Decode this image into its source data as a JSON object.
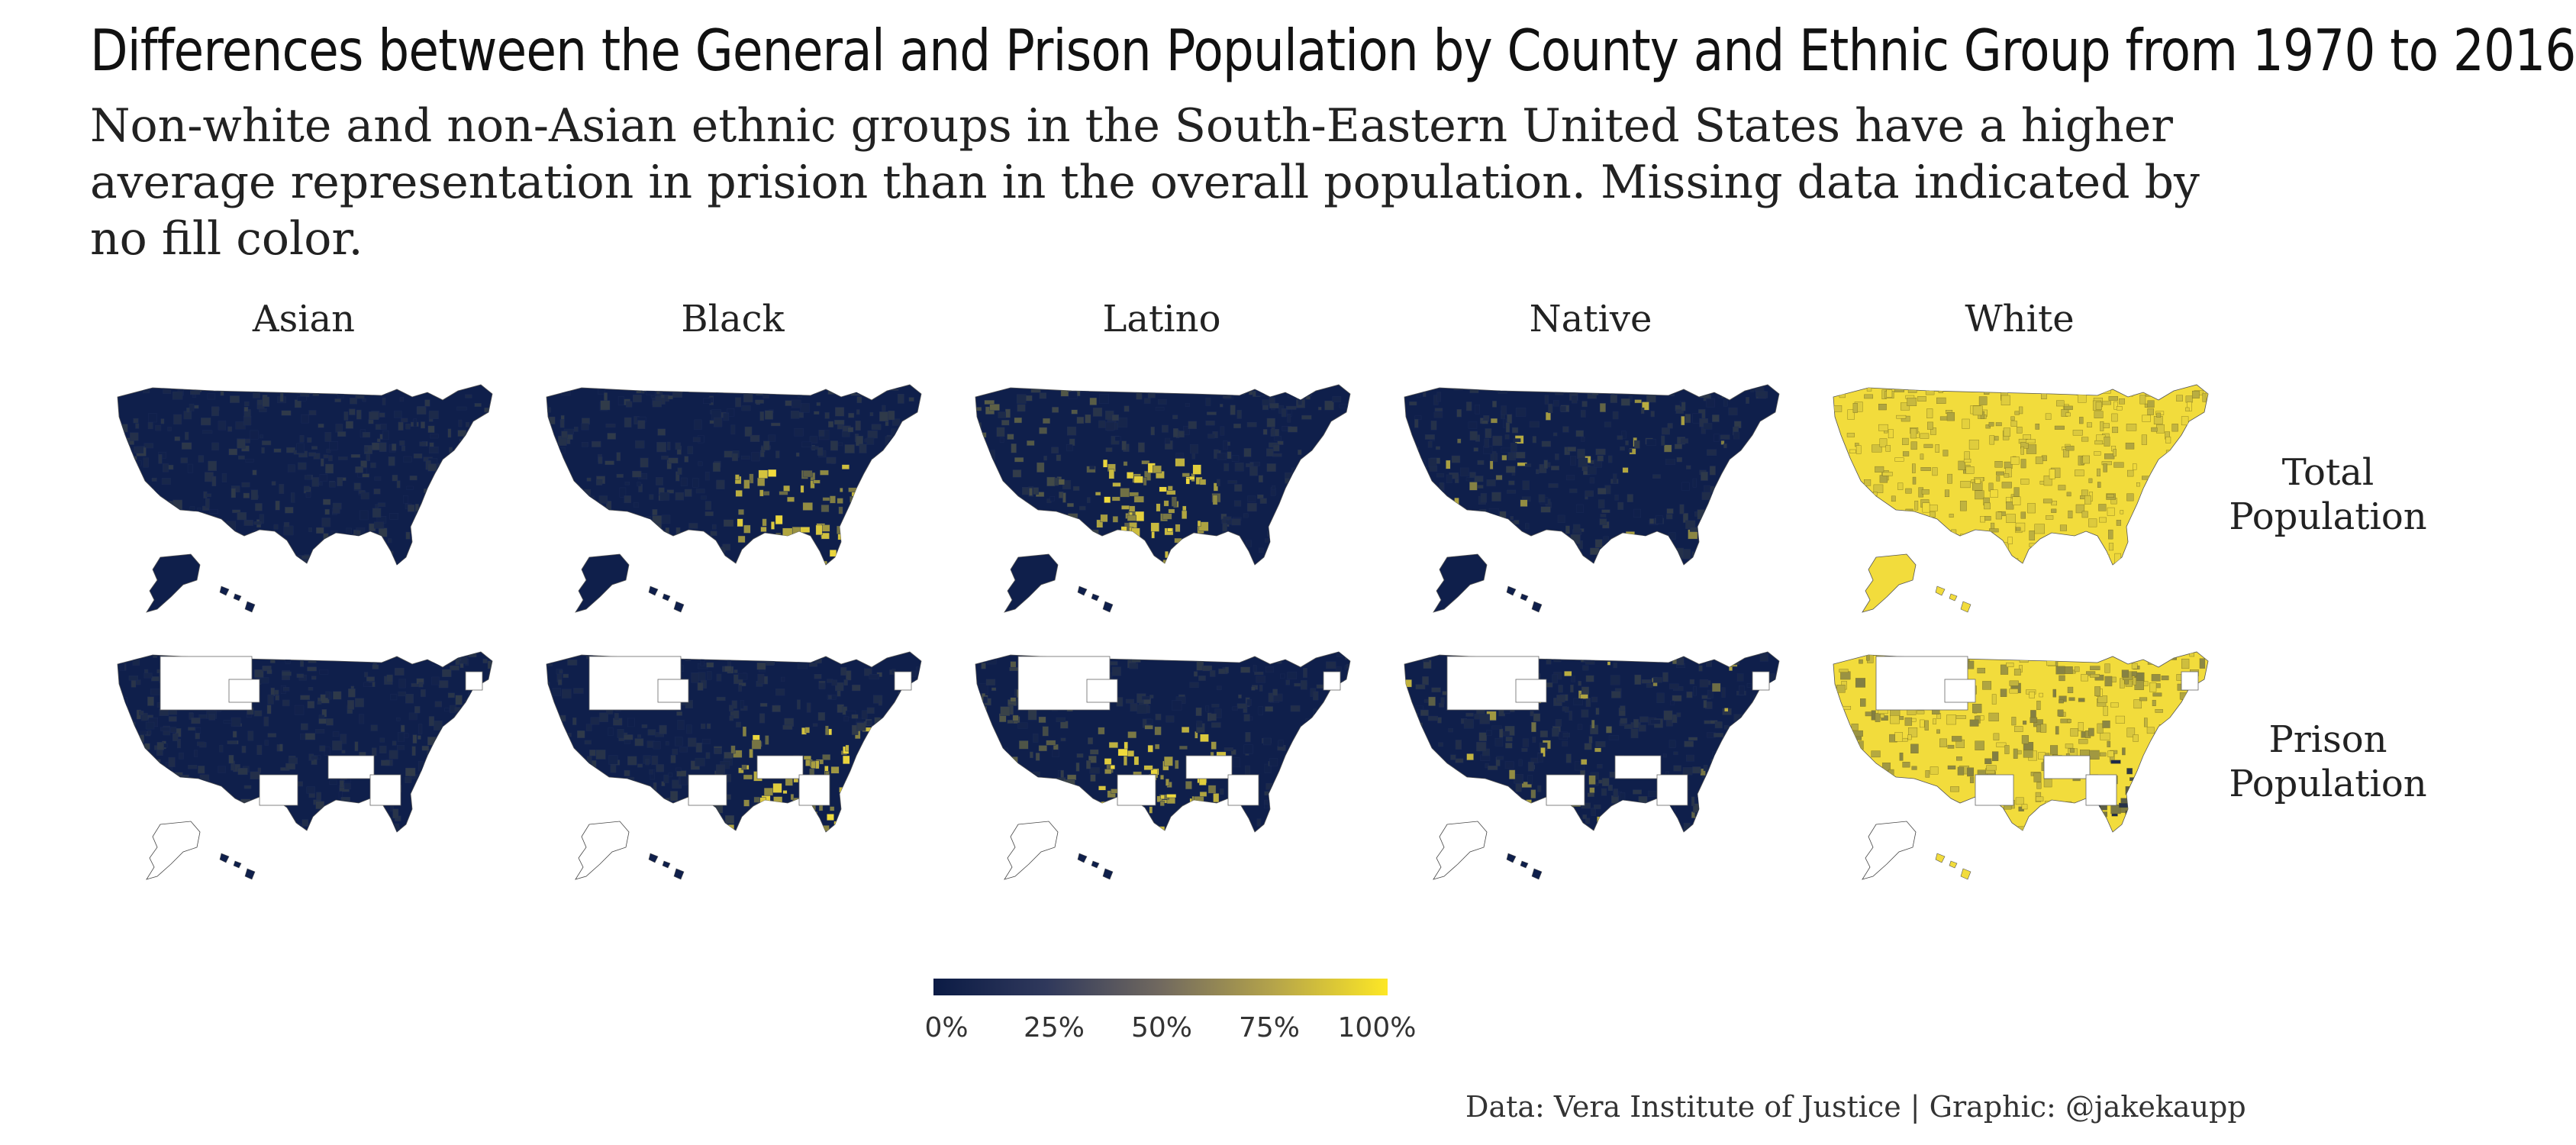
{
  "title": "Differences between the General and Prison Population by County and Ethnic Group from 1970 to 2016",
  "subtitle": "Non-white and non-Asian ethnic groups in the South-Eastern United States have a higher average representation in prision than in the overall population. Missing data indicated by no fill color.",
  "columns": [
    "Asian",
    "Black",
    "Latino",
    "Native",
    "White"
  ],
  "rows": [
    {
      "line1": "Total",
      "line2": "Population"
    },
    {
      "line1": "Prison",
      "line2": "Population"
    }
  ],
  "legend": {
    "ticks": [
      "0%",
      "25%",
      "50%",
      "75%",
      "100%"
    ],
    "values": [
      0,
      0.25,
      0.5,
      0.75,
      1.0
    ],
    "colors": [
      "#0b1b45",
      "#30395c",
      "#71695f",
      "#b5a44a",
      "#fde725"
    ]
  },
  "colors": {
    "low": "#0f1f4b",
    "high": "#f2dc3c",
    "missing": "#ffffff",
    "border": "#555555"
  },
  "caption": "Data: Vera Institute of Justice | Graphic: @jakekaupp"
}
